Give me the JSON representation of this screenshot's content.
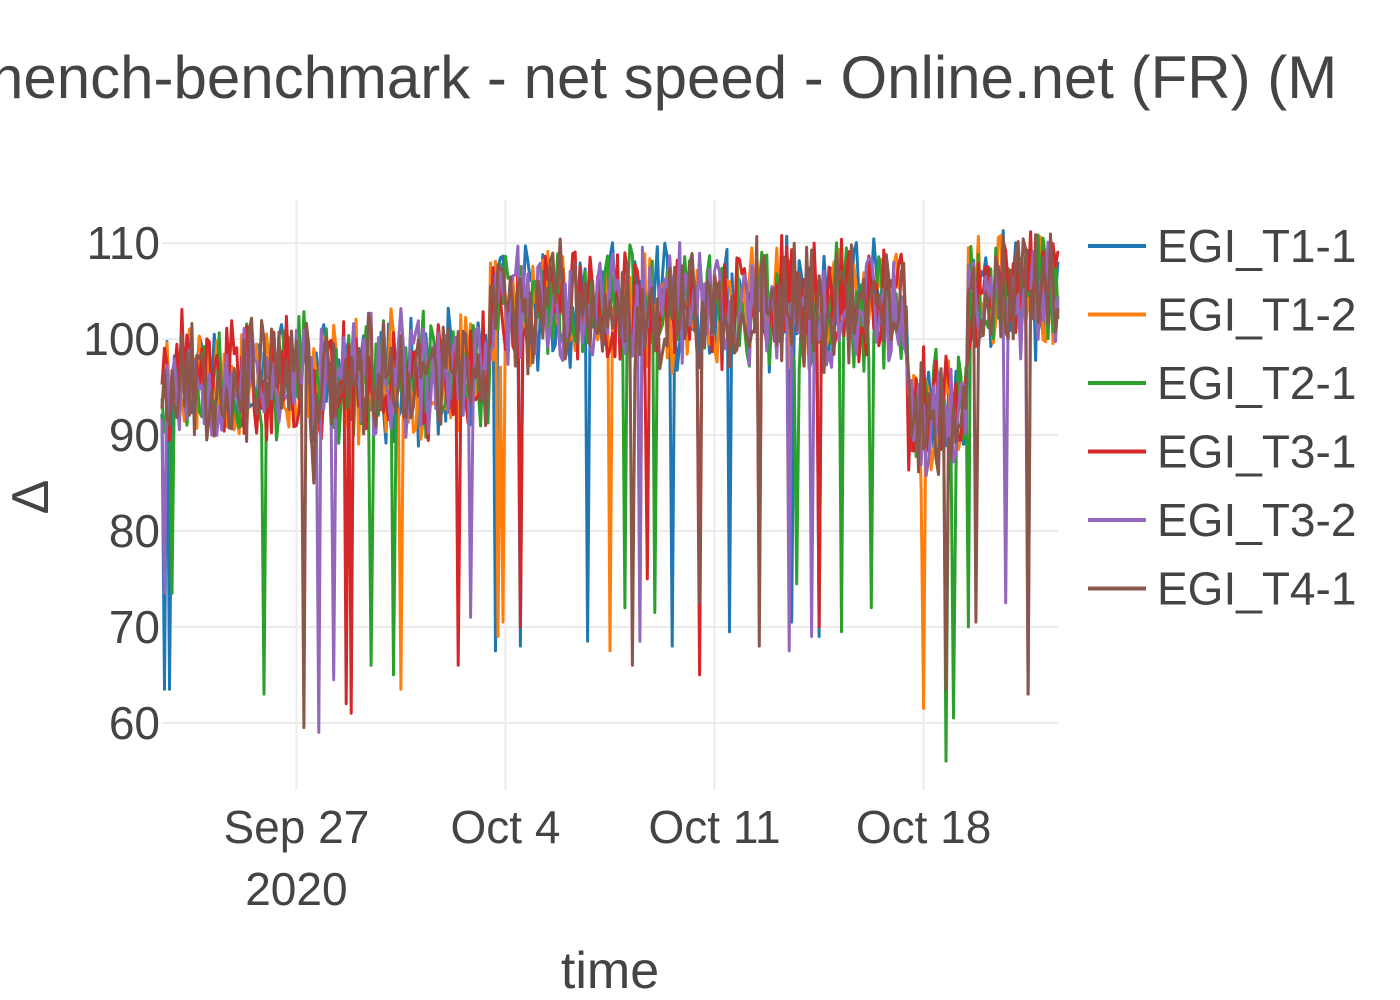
{
  "chart_data": {
    "type": "line",
    "title": "hench-benchmark - net speed - Online.net (FR) (M",
    "xlabel": "time",
    "ylabel": "Δ",
    "x_range": [
      "2020-09-22T12:00",
      "2020-10-22T12:00"
    ],
    "ylim": [
      53,
      114.5
    ],
    "y_ticks": [
      60,
      70,
      80,
      90,
      100,
      110
    ],
    "x_ticks": [
      {
        "date": "2020-09-27",
        "label": "Sep 27",
        "sublabel": "2020"
      },
      {
        "date": "2020-10-04",
        "label": "Oct 4",
        "sublabel": ""
      },
      {
        "date": "2020-10-11",
        "label": "Oct 11",
        "sublabel": ""
      },
      {
        "date": "2020-10-18",
        "label": "Oct 18",
        "sublabel": ""
      }
    ],
    "grid": true,
    "legend_position": "right",
    "series": [
      {
        "name": "EGI_T1-1",
        "color": "#1f77b4",
        "seed": 11,
        "dips": [
          [
            "2020-09-22T13:00",
            63.5
          ],
          [
            "2020-09-22T18:00",
            63.5
          ],
          [
            "2020-10-03T16:00",
            67.5
          ],
          [
            "2020-10-04T12:00",
            68
          ],
          [
            "2020-10-06T18:00",
            68.5
          ],
          [
            "2020-10-09T13:00",
            68
          ],
          [
            "2020-10-11T12:00",
            69.5
          ],
          [
            "2020-10-13T13:00",
            70.5
          ],
          [
            "2020-10-14T12:00",
            69
          ]
        ]
      },
      {
        "name": "EGI_T1-2",
        "color": "#ff7f0e",
        "seed": 23,
        "dips": [
          [
            "2020-09-30T12:00",
            63.5
          ],
          [
            "2020-10-03T18:00",
            69
          ],
          [
            "2020-10-03T22:00",
            70.5
          ],
          [
            "2020-10-07T12:00",
            67.5
          ],
          [
            "2020-10-08T12:00",
            70.5
          ],
          [
            "2020-10-17T22:00",
            84.5
          ],
          [
            "2020-10-18T00:00",
            61.5
          ]
        ]
      },
      {
        "name": "EGI_T2-1",
        "color": "#2ca02c",
        "seed": 37,
        "dips": [
          [
            "2020-09-22T20:00",
            73.5
          ],
          [
            "2020-09-25T22:00",
            63
          ],
          [
            "2020-09-29T12:00",
            66
          ],
          [
            "2020-09-30T06:00",
            65
          ],
          [
            "2020-10-08T00:00",
            72
          ],
          [
            "2020-10-09T00:00",
            71.5
          ],
          [
            "2020-10-13T18:00",
            74.5
          ],
          [
            "2020-10-15T06:00",
            69.5
          ],
          [
            "2020-10-16T06:00",
            72
          ],
          [
            "2020-10-18T18:00",
            56
          ],
          [
            "2020-10-19T00:00",
            60.5
          ],
          [
            "2020-10-19T12:00",
            70
          ]
        ]
      },
      {
        "name": "EGI_T3-1",
        "color": "#d62728",
        "seed": 41,
        "dips": [
          [
            "2020-09-28T16:00",
            62
          ],
          [
            "2020-09-28T20:00",
            61
          ],
          [
            "2020-10-02T10:00",
            66
          ],
          [
            "2020-10-04T12:00",
            70
          ],
          [
            "2020-10-08T18:00",
            75
          ],
          [
            "2020-10-10T12:00",
            65
          ],
          [
            "2020-10-12T12:00",
            71
          ],
          [
            "2020-10-14T12:00",
            70
          ]
        ]
      },
      {
        "name": "EGI_T3-2",
        "color": "#9467bd",
        "seed": 53,
        "dips": [
          [
            "2020-09-22T14:00",
            73.5
          ],
          [
            "2020-09-27T18:00",
            59
          ],
          [
            "2020-09-28T06:00",
            64.5
          ],
          [
            "2020-10-02T20:00",
            71
          ],
          [
            "2020-10-08T12:00",
            68.5
          ],
          [
            "2020-10-13T12:00",
            67.5
          ],
          [
            "2020-10-14T06:00",
            69
          ],
          [
            "2020-10-20T18:00",
            72.5
          ],
          [
            "2020-10-21T12:00",
            63
          ]
        ]
      },
      {
        "name": "EGI_T4-1",
        "color": "#8c564b",
        "seed": 67,
        "dips": [
          [
            "2020-09-27T06:00",
            59.5
          ],
          [
            "2020-09-27T14:00",
            85
          ],
          [
            "2020-10-08T06:00",
            66
          ],
          [
            "2020-10-10T12:00",
            72.5
          ],
          [
            "2020-10-12T12:00",
            68
          ],
          [
            "2020-10-18T18:00",
            63.5
          ],
          [
            "2020-10-19T18:00",
            70.5
          ],
          [
            "2020-10-21T12:00",
            63
          ]
        ]
      }
    ]
  }
}
